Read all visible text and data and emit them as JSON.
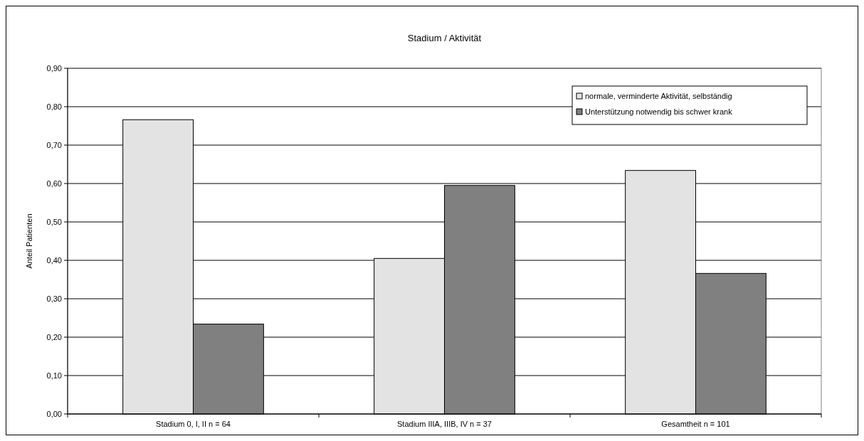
{
  "chart_data": {
    "type": "bar",
    "title": "Stadium / Aktivität",
    "ylabel": "Anteil Patienten",
    "categories": [
      "Stadium 0, I, II n = 64",
      "Stadium IIIA, IIIB, IV n = 37",
      "Gesamtheit n = 101"
    ],
    "series": [
      {
        "name": "normale, verminderte Aktivität, selbständig",
        "color": "#e3e3e3",
        "values": [
          0.766,
          0.405,
          0.634
        ]
      },
      {
        "name": "Unterstützung notwendig bis schwer krank",
        "color": "#808080",
        "values": [
          0.234,
          0.595,
          0.366
        ]
      }
    ],
    "ylim": [
      0,
      0.9
    ],
    "yticks": [
      {
        "value": 0,
        "label": "0,00"
      },
      {
        "value": 0.1,
        "label": "0,10"
      },
      {
        "value": 0.2,
        "label": "0,20"
      },
      {
        "value": 0.3,
        "label": "0,30"
      },
      {
        "value": 0.4,
        "label": "0,40"
      },
      {
        "value": 0.5,
        "label": "0,50"
      },
      {
        "value": 0.6,
        "label": "0,60"
      },
      {
        "value": 0.7,
        "label": "0,70"
      },
      {
        "value": 0.8,
        "label": "0,80"
      },
      {
        "value": 0.9,
        "label": "0,90"
      }
    ],
    "grid": "y",
    "legend": "top right"
  }
}
